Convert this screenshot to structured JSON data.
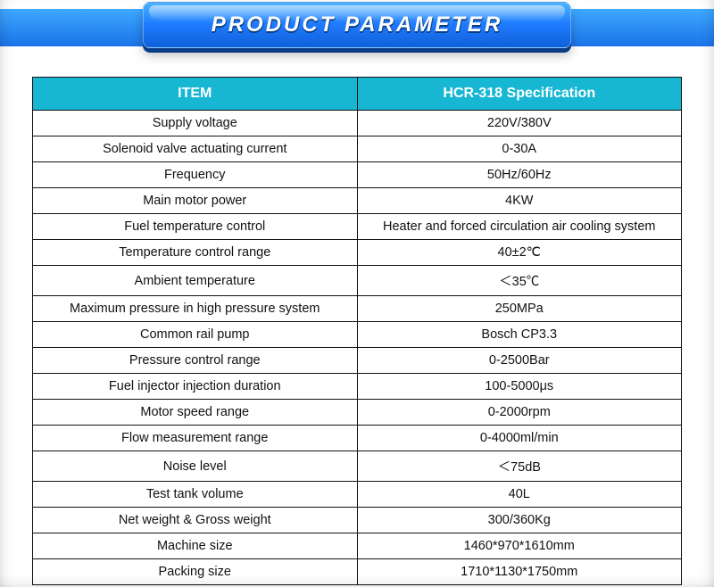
{
  "banner": {
    "title": "PRODUCT PARAMETER",
    "gradient_top": "#4db4ff",
    "gradient_mid": "#1f7bff",
    "gradient_bottom": "#0f60d8",
    "shadow_color": "#0a3d85",
    "title_color": "#ffffff",
    "title_fontsize_pt": 18
  },
  "table": {
    "header_bg": "#17b7d4",
    "header_color": "#ffffff",
    "border_color": "#111111",
    "cell_bg": "#ffffff",
    "cell_color": "#111111",
    "header_fontsize_pt": 12,
    "cell_fontsize_pt": 11,
    "col_widths_pct": [
      50,
      50
    ],
    "columns": [
      "ITEM",
      "HCR-318  Specification"
    ],
    "rows": [
      [
        "Supply voltage",
        "220V/380V"
      ],
      [
        "Solenoid valve actuating current",
        "0-30A"
      ],
      [
        "Frequency",
        "50Hz/60Hz"
      ],
      [
        "Main motor power",
        "4KW"
      ],
      [
        "Fuel temperature control",
        "Heater and forced circulation air cooling system"
      ],
      [
        "Temperature control range",
        "40±2℃"
      ],
      [
        "Ambient temperature",
        "＜35℃"
      ],
      [
        "Maximum pressure in high pressure system",
        "250MPa"
      ],
      [
        "Common rail pump",
        "Bosch CP3.3"
      ],
      [
        "Pressure control range",
        "0-2500Bar"
      ],
      [
        "Fuel injector injection duration",
        "100-5000μs"
      ],
      [
        "Motor speed range",
        "0-2000rpm"
      ],
      [
        "Flow measurement range",
        "0-4000ml/min"
      ],
      [
        "Noise level",
        "＜75dB"
      ],
      [
        "Test tank volume",
        "40L"
      ],
      [
        "Net weight & Gross weight",
        "300/360Kg"
      ],
      [
        "Machine size",
        "1460*970*1610mm"
      ],
      [
        "Packing size",
        "1710*1130*1750mm"
      ]
    ]
  }
}
